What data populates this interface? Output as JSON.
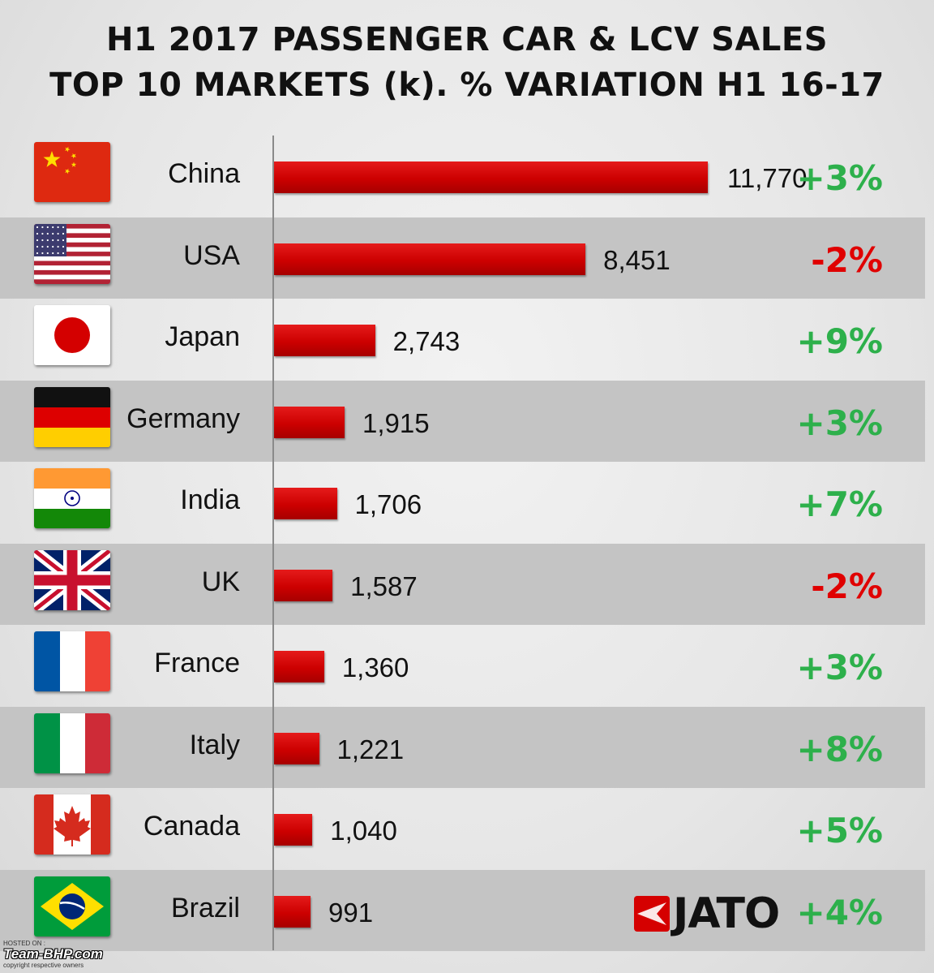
{
  "title_line1": "H1 2017 PASSENGER CAR & LCV SALES",
  "title_line2": "TOP 10 MARKETS (k). % VARIATION  H1 16-17",
  "chart_data": {
    "type": "bar",
    "orientation": "horizontal",
    "categories": [
      "China",
      "USA",
      "Japan",
      "Germany",
      "India",
      "UK",
      "France",
      "Italy",
      "Canada",
      "Brazil"
    ],
    "values": [
      11770,
      8451,
      2743,
      1915,
      1706,
      1587,
      1360,
      1221,
      1040,
      991
    ],
    "value_labels": [
      "11,770",
      "8,451",
      "2,743",
      "1,915",
      "1,706",
      "1,587",
      "1,360",
      "1,221",
      "1,040",
      "991"
    ],
    "variation_labels": [
      "+3%",
      "-2%",
      "+9%",
      "+3%",
      "+7%",
      "-2%",
      "+3%",
      "+8%",
      "+5%",
      "+4%"
    ],
    "variation_pct": [
      3,
      -2,
      9,
      3,
      7,
      -2,
      3,
      8,
      5,
      4
    ],
    "bar_color": "#cc0000",
    "positive_color": "#2db04b",
    "negative_color": "#e00000",
    "row_shading_color": "#c4c4c4",
    "grid": false,
    "xlim": [
      0,
      11770
    ]
  },
  "logo_text": "JATO",
  "watermark": {
    "top": "HOSTED ON :",
    "main": "Team-BHP.com",
    "bottom": "copyright respective owners"
  }
}
